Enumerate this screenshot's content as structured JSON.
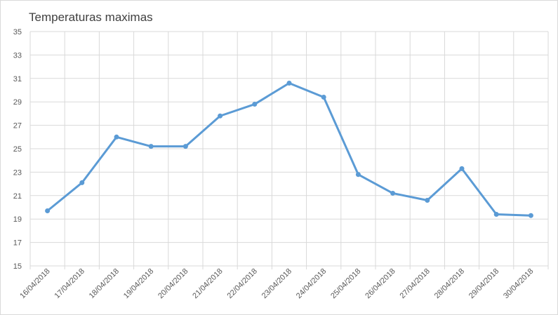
{
  "chart_data": {
    "type": "line",
    "title": "Temperaturas maximas",
    "xlabel": "",
    "ylabel": "",
    "categories": [
      "16/04/2018",
      "17/04/2018",
      "18/04/2018",
      "19/04/2018",
      "20/04/2018",
      "21/04/2018",
      "22/04/2018",
      "23/04/2018",
      "24/04/2018",
      "25/04/2018",
      "26/04/2018",
      "27/04/2018",
      "28/04/2018",
      "29/04/2018",
      "30/04/2018"
    ],
    "series": [
      {
        "values": [
          19.7,
          22.1,
          26.0,
          25.2,
          25.2,
          27.8,
          28.8,
          30.6,
          29.4,
          22.8,
          21.2,
          20.6,
          23.3,
          19.4,
          19.3
        ],
        "color": "#5b9bd5"
      }
    ],
    "ylim": [
      15,
      35
    ],
    "yticks": [
      15,
      17,
      19,
      21,
      23,
      25,
      27,
      29,
      31,
      33,
      35
    ],
    "grid": true,
    "legend": "none"
  }
}
